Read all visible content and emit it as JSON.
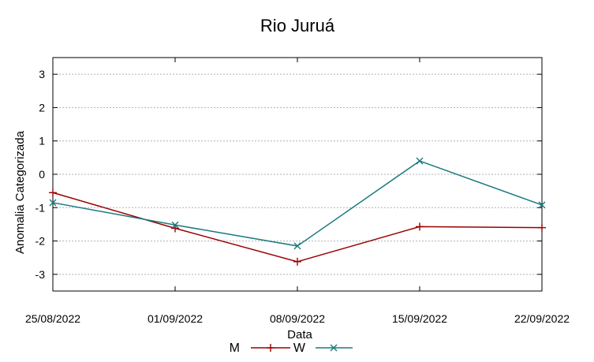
{
  "chart_data": {
    "type": "line",
    "title": "Rio Juruá",
    "xlabel": "Data",
    "ylabel": "Anomalia Categorizada",
    "categories": [
      "25/08/2022",
      "01/09/2022",
      "08/09/2022",
      "15/09/2022",
      "22/09/2022"
    ],
    "x_tick_labels": [
      "25/08/2022",
      "01/09/2022",
      "08/09/2022",
      "15/09/2022",
      "22/09/2022"
    ],
    "y_ticks": [
      3,
      2,
      1,
      0,
      -1,
      -2,
      -3
    ],
    "y_tick_labels": [
      "3",
      "2",
      "1",
      "0",
      "-1",
      "-2",
      "-3"
    ],
    "ylim": [
      -3.5,
      3.5
    ],
    "grid": "horizontal dotted",
    "legend_position": "bottom",
    "series": [
      {
        "name": "M",
        "color": "#990000",
        "marker": "plus",
        "values": [
          -0.55,
          -1.62,
          -2.62,
          -1.57,
          -1.6
        ]
      },
      {
        "name": "W",
        "color": "#1a7a7f",
        "marker": "cross",
        "values": [
          -0.85,
          -1.52,
          -2.15,
          0.4,
          -0.92
        ]
      }
    ]
  }
}
